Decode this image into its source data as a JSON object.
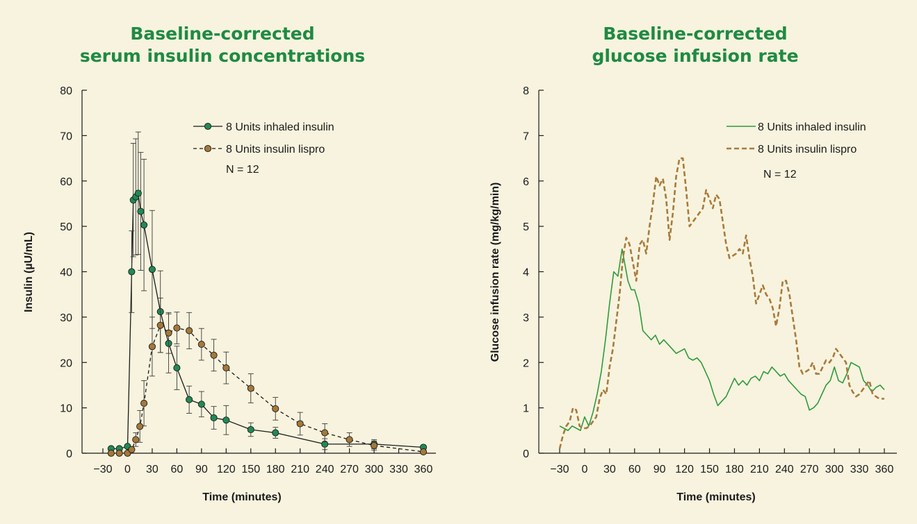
{
  "colors": {
    "background": "#f7f3de",
    "title": "#1f8a43",
    "inhaled": "#1a1a1a",
    "inhaled_marker": "#1f8a55",
    "lispro": "#1a1a1a",
    "lispro_marker": "#a4783a",
    "inhaled_line_right": "#2e9a3c",
    "lispro_line_right": "#a87a3c"
  },
  "chart_data": [
    {
      "type": "line",
      "title": "Baseline-corrected serum insulin concentrations",
      "title_lines": [
        "Baseline-corrected",
        "serum insulin concentrations"
      ],
      "xlabel": "Time (minutes)",
      "ylabel": "Insulin (µU/mL)",
      "xlim": [
        -30,
        360
      ],
      "ylim": [
        0,
        80
      ],
      "xticks": [
        -30,
        0,
        30,
        60,
        90,
        120,
        150,
        180,
        210,
        240,
        270,
        300,
        330,
        360
      ],
      "xtick_labels": [
        "−30",
        "0",
        "30",
        "60",
        "90",
        "120",
        "150",
        "180",
        "210",
        "240",
        "270",
        "300",
        "330",
        "360"
      ],
      "yticks": [
        0,
        10,
        20,
        30,
        40,
        50,
        60,
        70,
        80
      ],
      "ytick_labels": [
        "0",
        "10",
        "20",
        "30",
        "40",
        "50",
        "60",
        "70",
        "80"
      ],
      "grid": false,
      "legend_position": "top-right",
      "legend_note": "N = 12",
      "series": [
        {
          "name": "8 Units inhaled insulin",
          "style": "solid-markers",
          "x": [
            -20,
            -10,
            0,
            5,
            7,
            10,
            13,
            16,
            20,
            30,
            40,
            50,
            60,
            75,
            90,
            105,
            120,
            150,
            180,
            240,
            300,
            360
          ],
          "y": [
            1.0,
            1.0,
            1.5,
            40.0,
            55.8,
            56.5,
            57.3,
            53.3,
            50.3,
            40.5,
            31.2,
            24.2,
            18.8,
            11.8,
            10.8,
            7.8,
            7.3,
            5.2,
            4.5,
            2.0,
            2.0,
            1.3
          ],
          "err": [
            0,
            0,
            0,
            9.0,
            12.5,
            12.8,
            13.5,
            13.0,
            14.5,
            13.0,
            9.0,
            6.5,
            4.8,
            3.0,
            2.8,
            2.5,
            3.2,
            1.5,
            1.2,
            1.2,
            1.0,
            0
          ]
        },
        {
          "name": "8 Units insulin lispro",
          "style": "dashed-markers",
          "x": [
            -20,
            -10,
            0,
            5,
            10,
            15,
            20,
            30,
            40,
            50,
            60,
            75,
            90,
            105,
            120,
            150,
            180,
            210,
            240,
            270,
            300,
            360
          ],
          "y": [
            0.0,
            0.0,
            0.0,
            0.8,
            3.0,
            5.9,
            11.0,
            23.5,
            28.2,
            26.5,
            27.6,
            27.0,
            24.0,
            21.6,
            18.8,
            14.3,
            9.8,
            6.5,
            4.5,
            3.0,
            1.7,
            0.3
          ],
          "err": [
            0,
            0,
            0,
            0,
            1.5,
            3.5,
            5.0,
            6.5,
            6.0,
            4.5,
            3.5,
            4.0,
            3.5,
            3.5,
            3.5,
            3.2,
            2.5,
            2.5,
            2.0,
            1.5,
            1.0,
            0
          ]
        }
      ]
    },
    {
      "type": "line",
      "title": "Baseline-corrected glucose infusion rate",
      "title_lines": [
        "Baseline-corrected",
        "glucose infusion rate"
      ],
      "xlabel": "Time (minutes)",
      "ylabel": "Glucose infusion rate (mg/kg/min)",
      "xlim": [
        -30,
        360
      ],
      "ylim": [
        0,
        8
      ],
      "xticks": [
        -30,
        0,
        30,
        60,
        90,
        120,
        150,
        180,
        210,
        240,
        270,
        300,
        330,
        360
      ],
      "xtick_labels": [
        "−30",
        "0",
        "30",
        "60",
        "90",
        "120",
        "150",
        "180",
        "210",
        "240",
        "270",
        "300",
        "330",
        "360"
      ],
      "yticks": [
        0,
        1,
        2,
        3,
        4,
        5,
        6,
        7,
        8
      ],
      "ytick_labels": [
        "0",
        "1",
        "2",
        "3",
        "4",
        "5",
        "6",
        "7",
        "8"
      ],
      "grid": false,
      "legend_position": "top-right",
      "legend_note": "N = 12",
      "series": [
        {
          "name": "8 Units inhaled insulin",
          "style": "solid",
          "x": [
            -30,
            -25,
            -20,
            -15,
            -10,
            -5,
            0,
            5,
            10,
            15,
            20,
            25,
            30,
            35,
            40,
            45,
            48,
            52,
            56,
            60,
            65,
            70,
            75,
            80,
            85,
            90,
            95,
            100,
            105,
            110,
            115,
            120,
            125,
            130,
            135,
            140,
            145,
            150,
            155,
            160,
            165,
            170,
            175,
            180,
            185,
            190,
            195,
            200,
            205,
            210,
            215,
            220,
            225,
            230,
            235,
            240,
            245,
            250,
            255,
            260,
            265,
            270,
            275,
            280,
            285,
            290,
            295,
            300,
            305,
            310,
            315,
            320,
            325,
            330,
            335,
            340,
            345,
            350,
            355,
            360
          ],
          "y": [
            0.6,
            0.55,
            0.5,
            0.6,
            0.55,
            0.5,
            0.8,
            0.6,
            0.9,
            1.3,
            1.8,
            2.5,
            3.3,
            4.0,
            3.9,
            4.5,
            4.2,
            3.8,
            3.6,
            3.6,
            3.3,
            2.7,
            2.6,
            2.5,
            2.6,
            2.4,
            2.5,
            2.4,
            2.3,
            2.2,
            2.25,
            2.3,
            2.1,
            2.05,
            2.1,
            2.0,
            1.8,
            1.6,
            1.3,
            1.05,
            1.15,
            1.25,
            1.45,
            1.65,
            1.5,
            1.6,
            1.5,
            1.65,
            1.7,
            1.6,
            1.8,
            1.75,
            1.9,
            1.8,
            1.7,
            1.75,
            1.6,
            1.5,
            1.4,
            1.3,
            1.25,
            0.95,
            1.0,
            1.1,
            1.3,
            1.5,
            1.6,
            1.9,
            1.6,
            1.55,
            1.75,
            2.0,
            1.95,
            1.9,
            1.6,
            1.5,
            1.35,
            1.45,
            1.5,
            1.4
          ]
        },
        {
          "name": "8 Units insulin lispro",
          "style": "dashed",
          "x": [
            -30,
            -26,
            -22,
            -18,
            -14,
            -10,
            -6,
            -2,
            2,
            6,
            10,
            14,
            18,
            22,
            26,
            30,
            34,
            38,
            42,
            46,
            50,
            54,
            58,
            62,
            66,
            70,
            74,
            78,
            82,
            86,
            90,
            94,
            98,
            102,
            106,
            110,
            114,
            118,
            122,
            126,
            130,
            134,
            138,
            142,
            146,
            150,
            154,
            158,
            162,
            166,
            170,
            174,
            178,
            182,
            186,
            190,
            194,
            198,
            202,
            206,
            210,
            214,
            218,
            222,
            226,
            230,
            234,
            238,
            242,
            246,
            250,
            254,
            258,
            262,
            266,
            270,
            274,
            278,
            282,
            286,
            290,
            294,
            298,
            302,
            306,
            310,
            314,
            318,
            322,
            326,
            330,
            334,
            338,
            342,
            346,
            350,
            354,
            360
          ],
          "y": [
            0.1,
            0.4,
            0.6,
            0.7,
            1.0,
            0.95,
            0.6,
            0.55,
            0.55,
            0.6,
            0.7,
            0.8,
            1.2,
            1.4,
            1.3,
            1.9,
            2.3,
            2.9,
            3.5,
            4.3,
            4.75,
            4.6,
            4.2,
            3.8,
            4.6,
            4.7,
            4.4,
            5.0,
            5.5,
            6.1,
            5.9,
            6.05,
            5.6,
            4.7,
            5.3,
            6.1,
            6.5,
            6.5,
            5.8,
            5.0,
            5.1,
            5.2,
            5.3,
            5.4,
            5.8,
            5.6,
            5.4,
            5.7,
            5.6,
            5.1,
            4.6,
            4.3,
            4.35,
            4.4,
            4.5,
            4.4,
            4.8,
            4.3,
            3.9,
            3.3,
            3.5,
            3.7,
            3.5,
            3.4,
            3.2,
            2.8,
            3.2,
            3.8,
            3.8,
            3.5,
            3.0,
            2.5,
            1.9,
            1.75,
            1.8,
            1.85,
            2.0,
            1.75,
            1.75,
            1.9,
            2.05,
            2.0,
            2.1,
            2.3,
            2.2,
            2.1,
            2.0,
            1.5,
            1.35,
            1.25,
            1.3,
            1.4,
            1.5,
            1.6,
            1.3,
            1.25,
            1.2,
            1.2
          ]
        }
      ]
    }
  ]
}
